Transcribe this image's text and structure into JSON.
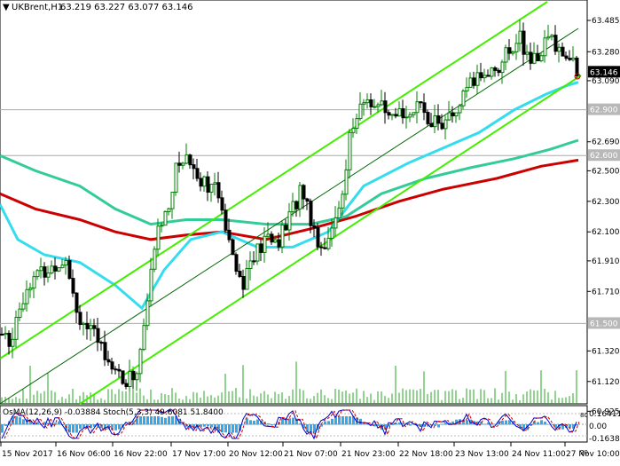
{
  "header": {
    "symbol_label": "UKBrent,H1",
    "ohlc_text": "63.219 63.227 63.077 63.146"
  },
  "price_axis": {
    "ticks": [
      "63.485",
      "63.280",
      "63.090",
      "62.690",
      "62.500",
      "62.300",
      "62.100",
      "61.910",
      "61.710",
      "61.320",
      "61.120",
      "60.925"
    ],
    "boxed_levels": [
      "62.900",
      "62.600",
      "61.500"
    ],
    "current_price": "63.146"
  },
  "indicator": {
    "label": "OsMA(12,26,9) -0.03884  Stoch(5,3,3) 49.6081 51.8400",
    "ticks": [
      "0.16411",
      "0.00",
      "-0.16387"
    ],
    "stoch_levels": [
      "80",
      "20"
    ]
  },
  "time_axis": {
    "labels": [
      "15 Nov 2017",
      "16 Nov 06:00",
      "16 Nov 22:00",
      "17 Nov 17:00",
      "20 Nov 12:00",
      "21 Nov 07:00",
      "21 Nov 23:00",
      "22 Nov 18:00",
      "23 Nov 13:00",
      "24 Nov 11:00",
      "27 Nov 10:00"
    ]
  },
  "chart_data": {
    "type": "candlestick",
    "instrument": "UKBrent",
    "timeframe": "H1",
    "last": {
      "open": 63.219,
      "high": 63.227,
      "low": 63.077,
      "close": 63.146
    },
    "ylim": [
      60.925,
      63.6
    ],
    "price_ticks": [
      63.485,
      63.28,
      63.09,
      62.69,
      62.5,
      62.3,
      62.1,
      61.91,
      61.71,
      61.32,
      61.12,
      60.925
    ],
    "levels": [
      62.9,
      62.6,
      61.5
    ],
    "colors": {
      "bull": "#008000",
      "bear": "#000000",
      "ema_200": "#cc0000",
      "ema_144": "#33cc99",
      "ema_50": "#33ddee",
      "channel": "#44ee00",
      "channel_mid": "#008000",
      "osma": "#33aaee",
      "stoch_main": "#0000cc",
      "stoch_signal": "#cc0000",
      "volume": "#22aa22"
    }
  }
}
